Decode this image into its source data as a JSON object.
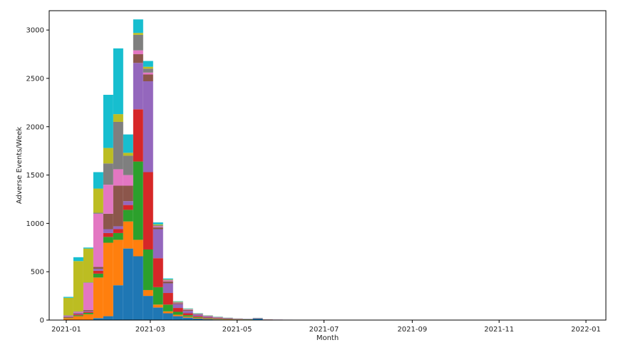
{
  "chart_data": {
    "type": "bar",
    "stacked": true,
    "title": "",
    "xlabel": "Month",
    "ylabel": "Adverse Events/Week",
    "xlim": [
      "2020-12-20",
      "2022-01-15"
    ],
    "ylim": [
      0,
      3200
    ],
    "legend": "none",
    "grid": false,
    "bin_width_days": 7,
    "x_ticks": [
      "2021-01",
      "2021-03",
      "2021-05",
      "2021-07",
      "2021-09",
      "2021-11",
      "2022-01"
    ],
    "y_ticks": [
      0,
      500,
      1000,
      1500,
      2000,
      2500,
      3000
    ],
    "weeks": [
      "2020-12-30",
      "2021-01-06",
      "2021-01-13",
      "2021-01-20",
      "2021-01-27",
      "2021-02-03",
      "2021-02-10",
      "2021-02-17",
      "2021-02-24",
      "2021-03-03",
      "2021-03-10",
      "2021-03-17",
      "2021-03-24",
      "2021-03-31",
      "2021-04-07",
      "2021-04-14",
      "2021-04-21",
      "2021-04-28",
      "2021-05-05",
      "2021-05-12",
      "2021-05-19",
      "2021-05-26",
      "2021-06-02",
      "2021-06-09",
      "2021-06-16",
      "2021-06-23",
      "2021-06-30",
      "2021-07-07",
      "2021-07-14",
      "2021-07-21",
      "2021-07-28",
      "2021-08-04",
      "2021-08-11",
      "2021-08-18",
      "2021-08-25",
      "2021-09-01",
      "2021-09-08",
      "2021-09-15",
      "2021-09-22",
      "2021-09-29",
      "2021-10-06",
      "2021-10-13",
      "2021-10-20",
      "2021-10-27",
      "2021-11-03",
      "2021-11-10",
      "2021-11-17",
      "2021-11-24",
      "2021-12-01",
      "2021-12-08",
      "2021-12-15",
      "2021-12-22"
    ],
    "series": [
      {
        "color": "#1f77b4",
        "values": [
          0,
          0,
          0,
          20,
          40,
          360,
          740,
          660,
          250,
          130,
          70,
          40,
          25,
          15,
          10,
          6,
          5,
          4,
          3,
          15,
          2,
          1,
          1,
          0,
          0,
          0,
          0,
          0,
          0,
          0,
          0,
          0,
          0,
          0,
          0,
          0,
          0,
          0,
          0,
          0,
          0,
          0,
          0,
          0,
          0,
          0,
          0,
          0,
          0,
          0,
          0,
          0
        ]
      },
      {
        "color": "#ff7f0e",
        "values": [
          20,
          40,
          60,
          420,
          760,
          470,
          280,
          170,
          60,
          30,
          20,
          15,
          10,
          8,
          5,
          4,
          3,
          2,
          2,
          1,
          1,
          1,
          0,
          0,
          0,
          0,
          0,
          0,
          0,
          0,
          0,
          0,
          0,
          0,
          0,
          0,
          0,
          0,
          0,
          0,
          0,
          0,
          0,
          0,
          0,
          0,
          0,
          0,
          0,
          0,
          0,
          0
        ]
      },
      {
        "color": "#2ca02c",
        "values": [
          5,
          10,
          15,
          40,
          60,
          70,
          120,
          810,
          420,
          180,
          70,
          30,
          15,
          8,
          5,
          4,
          3,
          2,
          2,
          1,
          1,
          1,
          1,
          0,
          0,
          0,
          0,
          0,
          0,
          0,
          0,
          0,
          0,
          0,
          0,
          0,
          0,
          0,
          0,
          0,
          0,
          0,
          0,
          0,
          0,
          0,
          0,
          0,
          0,
          0,
          0,
          0
        ]
      },
      {
        "color": "#d62728",
        "values": [
          5,
          10,
          10,
          30,
          40,
          40,
          50,
          540,
          800,
          300,
          120,
          40,
          20,
          10,
          6,
          5,
          3,
          2,
          1,
          1,
          1,
          1,
          1,
          1,
          1,
          1,
          0,
          0,
          0,
          0,
          0,
          0,
          0,
          0,
          0,
          0,
          0,
          0,
          0,
          0,
          0,
          0,
          0,
          0,
          1,
          0,
          0,
          0,
          0,
          0,
          0,
          0
        ]
      },
      {
        "color": "#9467bd",
        "values": [
          5,
          10,
          10,
          20,
          40,
          30,
          40,
          480,
          940,
          300,
          100,
          40,
          25,
          15,
          10,
          6,
          5,
          3,
          2,
          2,
          1,
          1,
          1,
          1,
          1,
          1,
          1,
          0,
          0,
          0,
          0,
          0,
          0,
          0,
          1,
          0,
          0,
          0,
          0,
          0,
          0,
          0,
          0,
          0,
          0,
          0,
          0,
          0,
          0,
          0,
          0,
          0
        ]
      },
      {
        "color": "#8c564b",
        "values": [
          5,
          5,
          10,
          20,
          160,
          420,
          160,
          90,
          70,
          20,
          20,
          10,
          10,
          5,
          4,
          3,
          2,
          1,
          1,
          1,
          1,
          0,
          0,
          0,
          0,
          0,
          0,
          0,
          0,
          0,
          0,
          0,
          0,
          0,
          0,
          0,
          0,
          0,
          0,
          0,
          0,
          0,
          0,
          0,
          0,
          0,
          0,
          0,
          0,
          0,
          0,
          0
        ]
      },
      {
        "color": "#e377c2",
        "values": [
          5,
          10,
          280,
          550,
          300,
          170,
          110,
          40,
          20,
          10,
          10,
          5,
          5,
          3,
          3,
          2,
          1,
          1,
          1,
          1,
          0,
          0,
          0,
          0,
          0,
          0,
          0,
          0,
          0,
          0,
          0,
          0,
          0,
          0,
          0,
          0,
          0,
          0,
          0,
          0,
          0,
          0,
          0,
          0,
          0,
          0,
          0,
          0,
          0,
          0,
          0,
          0
        ]
      },
      {
        "color": "#7f7f7f",
        "values": [
          5,
          5,
          5,
          10,
          220,
          490,
          200,
          160,
          40,
          10,
          5,
          5,
          3,
          3,
          2,
          2,
          1,
          1,
          1,
          0,
          0,
          0,
          0,
          0,
          0,
          0,
          0,
          0,
          0,
          0,
          0,
          0,
          0,
          0,
          0,
          0,
          0,
          0,
          0,
          0,
          0,
          0,
          0,
          0,
          0,
          0,
          0,
          0,
          0,
          0,
          0,
          0
        ]
      },
      {
        "color": "#bcbd22",
        "values": [
          180,
          520,
          350,
          250,
          160,
          80,
          30,
          20,
          20,
          10,
          5,
          5,
          3,
          2,
          2,
          1,
          1,
          1,
          0,
          0,
          0,
          0,
          0,
          0,
          0,
          0,
          0,
          0,
          0,
          0,
          0,
          0,
          0,
          0,
          0,
          0,
          0,
          0,
          0,
          0,
          0,
          0,
          0,
          0,
          0,
          0,
          0,
          0,
          0,
          0,
          0,
          0
        ]
      },
      {
        "color": "#17becf",
        "values": [
          10,
          40,
          10,
          170,
          550,
          680,
          190,
          140,
          60,
          20,
          10,
          5,
          4,
          3,
          2,
          2,
          1,
          1,
          1,
          1,
          0,
          0,
          0,
          0,
          0,
          0,
          0,
          1,
          0,
          1,
          0,
          0,
          1,
          0,
          0,
          0,
          0,
          0,
          0,
          0,
          0,
          0,
          0,
          0,
          0,
          0,
          0,
          0,
          0,
          0,
          0,
          0
        ]
      }
    ]
  }
}
